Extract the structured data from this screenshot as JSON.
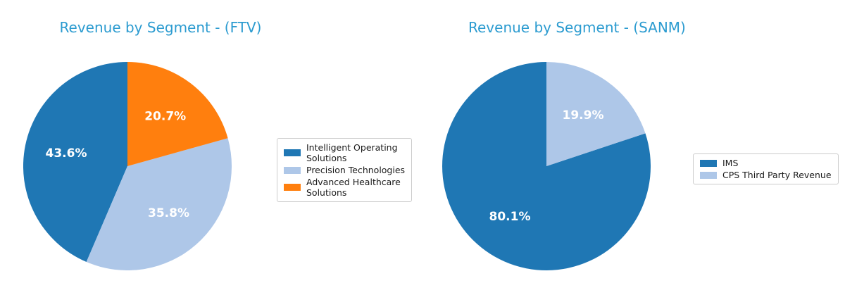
{
  "figure": {
    "background": "#ffffff"
  },
  "colors": {
    "title": "#2b9bd0",
    "dark_blue": "#1f77b4",
    "light_blue": "#aec7e8",
    "orange": "#ff7f0e",
    "percent_label": "#ffffff",
    "legend_border": "#cccccc",
    "legend_text": "#1a1a1a"
  },
  "chart_data": [
    {
      "type": "pie",
      "title": "Revenue by Segment - (FTV)",
      "labels": [
        "Intelligent Operating Solutions",
        "Precision Technologies",
        "Advanced Healthcare Solutions"
      ],
      "labels_wrapped": [
        [
          "Intelligent Operating",
          "Solutions"
        ],
        [
          "Precision Technologies"
        ],
        [
          "Advanced Healthcare",
          "Solutions"
        ]
      ],
      "values": [
        43.6,
        35.8,
        20.7
      ],
      "percent_labels": [
        "43.6%",
        "35.8%",
        "20.7%"
      ],
      "colors": [
        "#1f77b4",
        "#aec7e8",
        "#ff7f0e"
      ],
      "start_angle_deg": 90,
      "direction": "counterclockwise",
      "percent_label_radius": 0.6,
      "legend_position": "right of pie"
    },
    {
      "type": "pie",
      "title": "Revenue by Segment - (SANM)",
      "labels": [
        "IMS",
        "CPS Third Party Revenue"
      ],
      "labels_wrapped": [
        [
          "IMS"
        ],
        [
          "CPS Third Party Revenue"
        ]
      ],
      "values": [
        80.1,
        19.9
      ],
      "percent_labels": [
        "80.1%",
        "19.9%"
      ],
      "colors": [
        "#1f77b4",
        "#aec7e8"
      ],
      "start_angle_deg": 90,
      "direction": "counterclockwise",
      "percent_label_radius": 0.6,
      "legend_position": "right of pie"
    }
  ]
}
